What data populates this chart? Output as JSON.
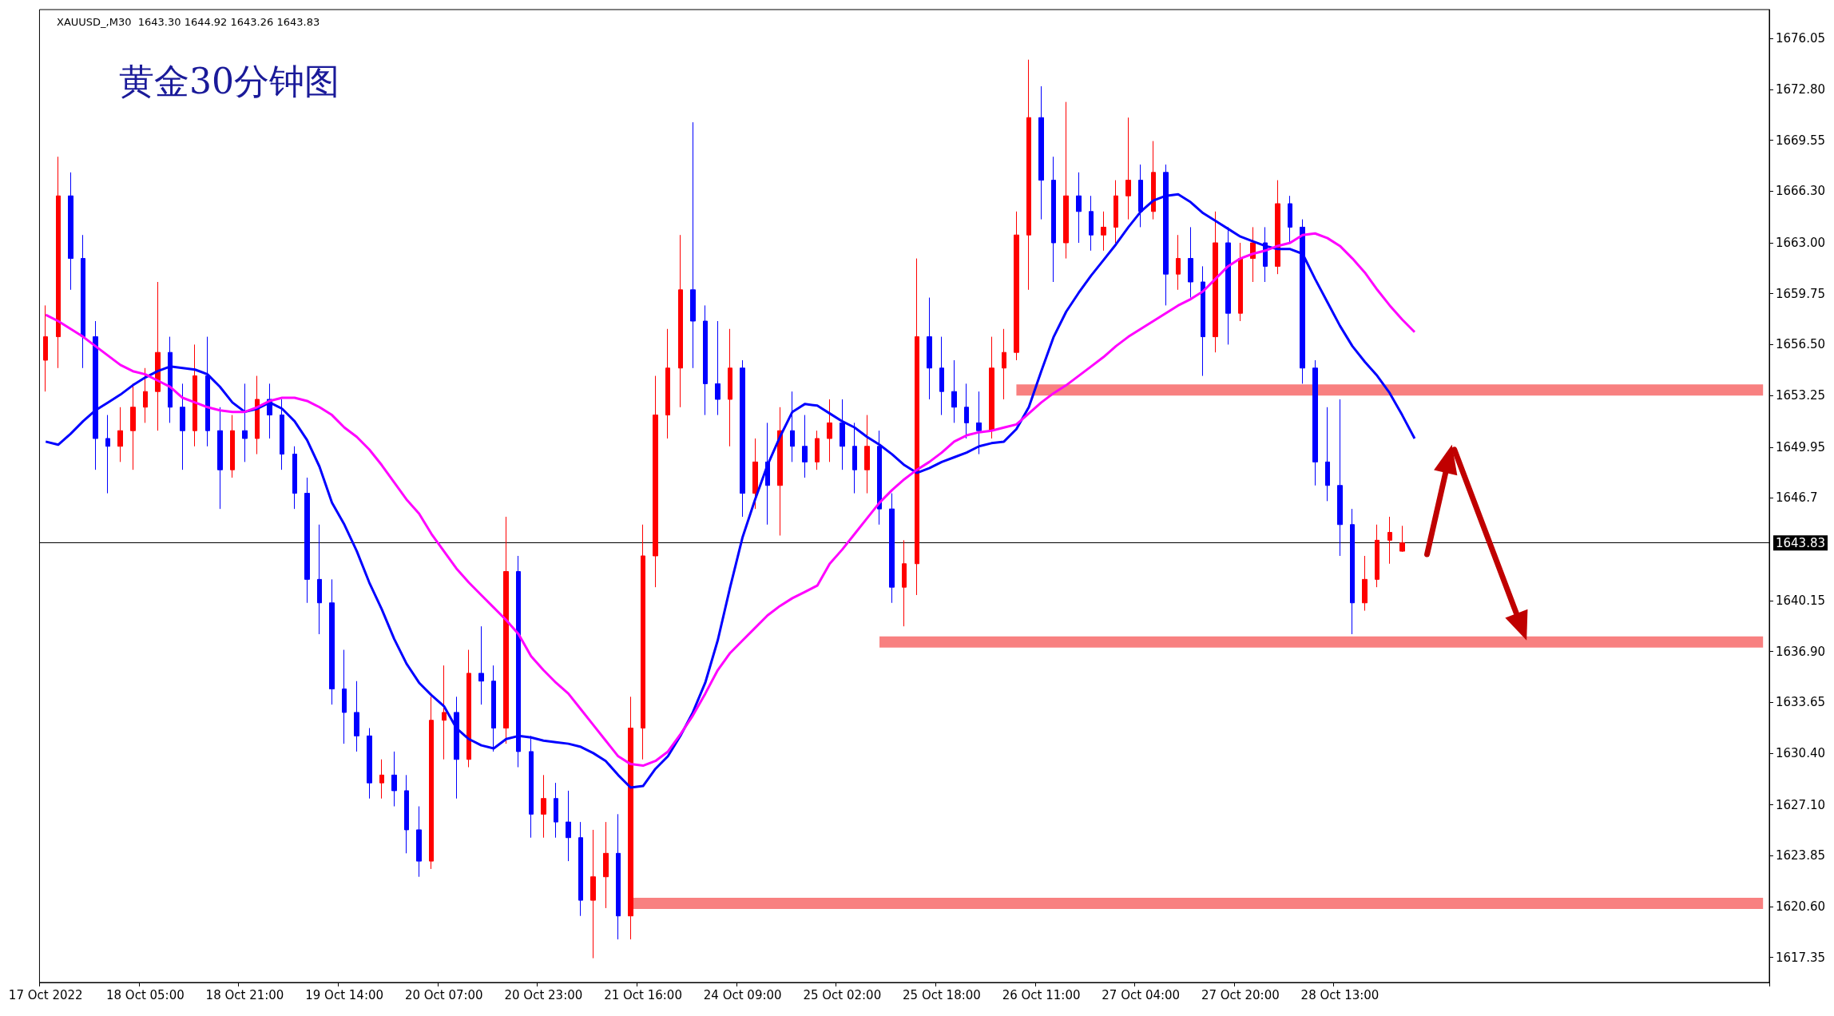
{
  "chart_data": {
    "type": "candlestick",
    "title": "黄金30分钟图",
    "subtitle": "XAUUSD_,M30  1643.30 1644.92 1643.26 1643.83",
    "categories": [
      "17 Oct 2022",
      null,
      null,
      null,
      null,
      null,
      null,
      null,
      "18 Oct 05:00",
      null,
      null,
      null,
      null,
      null,
      null,
      null,
      "18 Oct 21:00",
      null,
      null,
      null,
      null,
      null,
      null,
      null,
      "19 Oct 14:00",
      null,
      null,
      null,
      null,
      null,
      null,
      null,
      "20 Oct 07:00",
      null,
      null,
      null,
      null,
      null,
      null,
      null,
      "20 Oct 23:00",
      null,
      null,
      null,
      null,
      null,
      null,
      null,
      "21 Oct 16:00",
      null,
      null,
      null,
      null,
      null,
      null,
      null,
      "24 Oct 09:00",
      null,
      null,
      null,
      null,
      null,
      null,
      null,
      "25 Oct 02:00",
      null,
      null,
      null,
      null,
      null,
      null,
      null,
      "25 Oct 18:00",
      null,
      null,
      null,
      null,
      null,
      null,
      null,
      "26 Oct 11:00",
      null,
      null,
      null,
      null,
      null,
      null,
      null,
      "27 Oct 04:00",
      null,
      null,
      null,
      null,
      null,
      null,
      null,
      "27 Oct 20:00",
      null,
      null,
      null,
      null,
      null,
      null,
      null,
      "28 Oct 13:00",
      null,
      null,
      null,
      null,
      null,
      null,
      null,
      null,
      null,
      null,
      null,
      null,
      null,
      null,
      null,
      null,
      null,
      null,
      null,
      null,
      null,
      null,
      null,
      null,
      null,
      null,
      null,
      null,
      null,
      null,
      null,
      null,
      null,
      null
    ],
    "ohlc": [
      [
        1655.5,
        1659,
        1653.5,
        1657
      ],
      [
        1657,
        1668.5,
        1655,
        1666
      ],
      [
        1666,
        1667.5,
        1660,
        1662
      ],
      [
        1662,
        1663.5,
        1655,
        1657
      ],
      [
        1657,
        1658,
        1648.5,
        1650.5
      ],
      [
        1650.5,
        1652,
        1647,
        1650
      ],
      [
        1650,
        1652.5,
        1649,
        1651
      ],
      [
        1651,
        1654,
        1648.5,
        1652.5
      ],
      [
        1652.5,
        1655,
        1651.5,
        1653.5
      ],
      [
        1653.5,
        1660.5,
        1651,
        1656
      ],
      [
        1656,
        1657,
        1651.5,
        1652.5
      ],
      [
        1652.5,
        1654,
        1648.5,
        1651
      ],
      [
        1651,
        1656.5,
        1650,
        1654.5
      ],
      [
        1654.5,
        1657,
        1650,
        1651
      ],
      [
        1651,
        1652.5,
        1646,
        1648.5
      ],
      [
        1648.5,
        1652,
        1648,
        1651
      ],
      [
        1651,
        1654,
        1649,
        1650.5
      ],
      [
        1650.5,
        1654.5,
        1649.5,
        1653
      ],
      [
        1653,
        1654,
        1650.5,
        1652
      ],
      [
        1652,
        1653,
        1648.5,
        1649.5
      ],
      [
        1649.5,
        1650,
        1646,
        1647
      ],
      [
        1647,
        1648,
        1640,
        1641.5
      ],
      [
        1641.5,
        1645,
        1638,
        1640
      ],
      [
        1640,
        1641.5,
        1633.5,
        1634.5
      ],
      [
        1634.5,
        1637,
        1631,
        1633
      ],
      [
        1633,
        1635,
        1630.5,
        1631.5
      ],
      [
        1631.5,
        1632,
        1627.5,
        1628.5
      ],
      [
        1628.5,
        1630,
        1627.5,
        1629
      ],
      [
        1629,
        1630.5,
        1627,
        1628
      ],
      [
        1628,
        1629,
        1624,
        1625.5
      ],
      [
        1625.5,
        1627,
        1622.5,
        1623.5
      ],
      [
        1623.5,
        1634,
        1623,
        1632.5
      ],
      [
        1632.5,
        1636,
        1630,
        1633
      ],
      [
        1633,
        1634,
        1627.5,
        1630
      ],
      [
        1630,
        1637,
        1629.5,
        1635.5
      ],
      [
        1635.5,
        1638.5,
        1633.5,
        1635
      ],
      [
        1635,
        1636,
        1630.5,
        1632
      ],
      [
        1632,
        1645.5,
        1631,
        1642
      ],
      [
        1642,
        1643,
        1629.5,
        1630.5
      ],
      [
        1630.5,
        1631.5,
        1625,
        1626.5
      ],
      [
        1626.5,
        1629,
        1625,
        1627.5
      ],
      [
        1627.5,
        1628.5,
        1625,
        1626
      ],
      [
        1626,
        1628,
        1623.5,
        1625
      ],
      [
        1625,
        1626,
        1620,
        1621
      ],
      [
        1621,
        1625.5,
        1617.3,
        1622.5
      ],
      [
        1622.5,
        1626,
        1620.5,
        1624
      ],
      [
        1624,
        1626.5,
        1618.5,
        1620
      ],
      [
        1620,
        1634,
        1618.5,
        1632
      ],
      [
        1632,
        1645,
        1630,
        1643
      ],
      [
        1643,
        1654.5,
        1641,
        1652
      ],
      [
        1652,
        1657.5,
        1650.5,
        1655
      ],
      [
        1655,
        1663.5,
        1652.5,
        1660
      ],
      [
        1660,
        1670.7,
        1655,
        1658
      ],
      [
        1658,
        1659,
        1652,
        1654
      ],
      [
        1654,
        1658,
        1652,
        1653
      ],
      [
        1653,
        1657.5,
        1650,
        1655
      ],
      [
        1655,
        1655.5,
        1645.5,
        1647
      ],
      [
        1647,
        1650.5,
        1646,
        1649
      ],
      [
        1649,
        1651.5,
        1645,
        1647.5
      ],
      [
        1647.5,
        1652.5,
        1644.3,
        1651
      ],
      [
        1651,
        1653.5,
        1649,
        1650
      ],
      [
        1650,
        1652,
        1648,
        1649
      ],
      [
        1649,
        1651,
        1648.5,
        1650.5
      ],
      [
        1650.5,
        1653,
        1649,
        1651.5
      ],
      [
        1651.5,
        1653,
        1648.5,
        1650
      ],
      [
        1650,
        1651.5,
        1647,
        1648.5
      ],
      [
        1648.5,
        1652,
        1647,
        1650
      ],
      [
        1650,
        1651,
        1645,
        1646
      ],
      [
        1646,
        1647,
        1640,
        1641
      ],
      [
        1641,
        1644,
        1638.5,
        1642.5
      ],
      [
        1642.5,
        1662,
        1640.5,
        1657
      ],
      [
        1657,
        1659.5,
        1653,
        1655
      ],
      [
        1655,
        1657,
        1652,
        1653.5
      ],
      [
        1653.5,
        1655.5,
        1651.5,
        1652.5
      ],
      [
        1652.5,
        1654,
        1650.5,
        1651.5
      ],
      [
        1651.5,
        1653.5,
        1649.5,
        1651
      ],
      [
        1651,
        1657,
        1650.5,
        1655
      ],
      [
        1655,
        1657.5,
        1653,
        1656
      ],
      [
        1656,
        1665,
        1655.5,
        1663.5
      ],
      [
        1663.5,
        1674.7,
        1660,
        1671
      ],
      [
        1671,
        1673,
        1664.5,
        1667
      ],
      [
        1667,
        1668.5,
        1660.5,
        1663
      ],
      [
        1663,
        1672,
        1662,
        1666
      ],
      [
        1666,
        1667.5,
        1663,
        1665
      ],
      [
        1665,
        1666,
        1662.5,
        1663.5
      ],
      [
        1663.5,
        1665,
        1662.5,
        1664
      ],
      [
        1664,
        1667,
        1663,
        1666
      ],
      [
        1666,
        1671,
        1664.5,
        1667
      ],
      [
        1667,
        1668,
        1664,
        1665
      ],
      [
        1665,
        1669.5,
        1664.5,
        1667.5
      ],
      [
        1667.5,
        1668,
        1659,
        1661
      ],
      [
        1661,
        1663.5,
        1660,
        1662
      ],
      [
        1662,
        1664,
        1659.5,
        1660.5
      ],
      [
        1660.5,
        1661.5,
        1654.5,
        1657
      ],
      [
        1657,
        1665,
        1656,
        1663
      ],
      [
        1663,
        1664,
        1656.5,
        1658.5
      ],
      [
        1658.5,
        1663,
        1658,
        1662
      ],
      [
        1662,
        1664,
        1660.5,
        1663
      ],
      [
        1663,
        1664,
        1660.5,
        1661.5
      ],
      [
        1661.5,
        1667,
        1661,
        1665.5
      ],
      [
        1665.5,
        1666,
        1663,
        1664
      ],
      [
        1664,
        1664.5,
        1654,
        1655
      ],
      [
        1655,
        1655.5,
        1647.5,
        1649
      ],
      [
        1649,
        1652.5,
        1646.5,
        1647.5
      ],
      [
        1647.5,
        1653,
        1643,
        1645
      ],
      [
        1645,
        1646,
        1638,
        1640
      ],
      [
        1640,
        1643,
        1639.5,
        1641.5
      ],
      [
        1641.5,
        1645,
        1641,
        1644
      ],
      [
        1644,
        1645.5,
        1642.5,
        1644.5
      ],
      [
        1643.3,
        1644.92,
        1643.26,
        1643.83
      ],
      null,
      null,
      null,
      null,
      null,
      null,
      null,
      null,
      null,
      null,
      null,
      null,
      null,
      null,
      null,
      null,
      null,
      null,
      null,
      null,
      null,
      null,
      null,
      null,
      null,
      null,
      null,
      null,
      null
    ],
    "colors": [
      "#ff0000",
      "#ff0000",
      "#0000ff",
      "#0000ff",
      "#0000ff",
      "#0000ff",
      "#ff0000",
      "#ff0000",
      "#ff0000",
      "#ff0000",
      "#0000ff",
      "#0000ff",
      "#ff0000",
      "#0000ff",
      "#0000ff",
      "#ff0000",
      "#0000ff",
      "#ff0000",
      "#0000ff",
      "#0000ff",
      "#0000ff",
      "#0000ff",
      "#0000ff",
      "#0000ff",
      "#0000ff",
      "#0000ff",
      "#0000ff",
      "#ff0000",
      "#0000ff",
      "#0000ff",
      "#0000ff",
      "#ff0000",
      "#ff0000",
      "#0000ff",
      "#ff0000",
      "#0000ff",
      "#0000ff",
      "#ff0000",
      "#0000ff",
      "#0000ff",
      "#ff0000",
      "#0000ff",
      "#0000ff",
      "#0000ff",
      "#ff0000",
      "#ff0000",
      "#0000ff",
      "#ff0000",
      "#ff0000",
      "#ff0000",
      "#ff0000",
      "#ff0000",
      "#0000ff",
      "#0000ff",
      "#0000ff",
      "#ff0000",
      "#0000ff",
      "#ff0000",
      "#0000ff",
      "#ff0000",
      "#0000ff",
      "#0000ff",
      "#ff0000",
      "#ff0000",
      "#0000ff",
      "#0000ff",
      "#ff0000",
      "#0000ff",
      "#0000ff",
      "#ff0000",
      "#ff0000",
      "#0000ff",
      "#0000ff",
      "#0000ff",
      "#0000ff",
      "#0000ff",
      "#ff0000",
      "#ff0000",
      "#ff0000",
      "#ff0000",
      "#0000ff",
      "#0000ff",
      "#ff0000",
      "#0000ff",
      "#0000ff",
      "#ff0000",
      "#ff0000",
      "#ff0000",
      "#0000ff",
      "#ff0000",
      "#0000ff",
      "#ff0000",
      "#0000ff",
      "#0000ff",
      "#ff0000",
      "#0000ff",
      "#ff0000",
      "#ff0000",
      "#0000ff",
      "#ff0000",
      "#0000ff",
      "#0000ff",
      "#0000ff",
      "#0000ff",
      "#0000ff",
      "#0000ff",
      "#ff0000",
      "#ff0000",
      "#ff0000",
      "#ff0000",
      null,
      null,
      null,
      null,
      null,
      null,
      null,
      null,
      null,
      null,
      null,
      null,
      null,
      null,
      null,
      null,
      null,
      null,
      null,
      null,
      null,
      null,
      null,
      null,
      null,
      null,
      null,
      null,
      null
    ],
    "series": [
      {
        "type": "line",
        "color": "#0000ff",
        "values": [
          1650.3,
          1650.1,
          1650.8,
          1651.6,
          1652.3,
          1652.8,
          1653.3,
          1653.9,
          1654.4,
          1654.8,
          1655.1,
          1655.0,
          1654.9,
          1654.6,
          1653.8,
          1652.8,
          1652.2,
          1652.4,
          1652.8,
          1652.4,
          1651.6,
          1650.4,
          1648.7,
          1646.4,
          1645.0,
          1643.3,
          1641.3,
          1639.6,
          1637.7,
          1636.1,
          1634.9,
          1634.1,
          1633.4,
          1632.0,
          1631.3,
          1630.9,
          1630.7,
          1631.3,
          1631.5,
          1631.4,
          1631.2,
          1631.1,
          1631.0,
          1630.8,
          1630.4,
          1629.9,
          1629.0,
          1628.2,
          1628.3,
          1629.4,
          1630.2,
          1631.5,
          1633.0,
          1634.9,
          1637.6,
          1641.0,
          1644.2,
          1646.6,
          1648.8,
          1650.6,
          1652.2,
          1652.7,
          1652.6,
          1652.1,
          1651.6,
          1651.2,
          1650.6,
          1650.1,
          1649.5,
          1648.8,
          1648.3,
          1648.6,
          1649.0,
          1649.3,
          1649.6,
          1650.0,
          1650.2,
          1650.3,
          1651.1,
          1652.5,
          1654.8,
          1657.0,
          1658.6,
          1659.8,
          1660.9,
          1661.9,
          1662.9,
          1664.0,
          1665.0,
          1665.7,
          1666.0,
          1666.1,
          1665.6,
          1664.9,
          1664.4,
          1663.9,
          1663.4,
          1663.1,
          1662.8,
          1662.6,
          1662.6,
          1662.3,
          1660.7,
          1659.2,
          1657.7,
          1656.4,
          1655.4,
          1654.5,
          1653.4,
          1652.0,
          1650.5,
          null,
          null,
          null,
          null,
          null,
          null,
          null,
          null,
          null,
          null,
          null,
          null,
          null,
          null,
          null,
          null,
          null,
          null,
          null,
          null,
          null,
          null,
          null,
          null,
          null,
          null,
          null,
          null
        ]
      },
      {
        "type": "line",
        "color": "#ff00ff",
        "values": [
          1658.4,
          1658.0,
          1657.5,
          1657.0,
          1656.4,
          1655.8,
          1655.2,
          1654.8,
          1654.6,
          1654.2,
          1653.8,
          1653.1,
          1652.8,
          1652.5,
          1652.3,
          1652.2,
          1652.2,
          1652.5,
          1652.9,
          1653.1,
          1653.1,
          1652.9,
          1652.5,
          1652.0,
          1651.2,
          1650.6,
          1649.8,
          1648.8,
          1647.7,
          1646.6,
          1645.7,
          1644.4,
          1643.3,
          1642.2,
          1641.3,
          1640.5,
          1639.7,
          1638.9,
          1638.0,
          1636.6,
          1635.7,
          1634.9,
          1634.2,
          1633.2,
          1632.2,
          1631.2,
          1630.2,
          1629.7,
          1629.6,
          1629.9,
          1630.5,
          1631.6,
          1632.8,
          1634.2,
          1635.7,
          1636.8,
          1637.6,
          1638.4,
          1639.2,
          1639.8,
          1640.3,
          1640.7,
          1641.1,
          1642.5,
          1643.4,
          1644.4,
          1645.4,
          1646.4,
          1647.2,
          1647.9,
          1648.5,
          1649.0,
          1649.6,
          1650.3,
          1650.7,
          1650.9,
          1651.0,
          1651.2,
          1651.4,
          1652.1,
          1652.8,
          1653.4,
          1653.9,
          1654.5,
          1655.1,
          1655.7,
          1656.4,
          1657.0,
          1657.5,
          1658.0,
          1658.5,
          1659.0,
          1659.4,
          1659.9,
          1660.7,
          1661.5,
          1662.0,
          1662.3,
          1662.5,
          1662.8,
          1663.0,
          1663.5,
          1663.6,
          1663.3,
          1662.8,
          1662.0,
          1661.1,
          1660.0,
          1659.0,
          1658.1,
          1657.3,
          null,
          null,
          null,
          null,
          null,
          null,
          null,
          null,
          null,
          null,
          null,
          null,
          null,
          null,
          null,
          null,
          null,
          null,
          null,
          null,
          null,
          null,
          null,
          null,
          null,
          null,
          null,
          null
        ]
      },
      {
        "type": "line",
        "color": "#f88080",
        "values": [
          null,
          null,
          null,
          null,
          null,
          null,
          null,
          null,
          null,
          null,
          null,
          null,
          null,
          null,
          null,
          null,
          null,
          null,
          null,
          null,
          null,
          null,
          null,
          null,
          null,
          null,
          null,
          null,
          null,
          null,
          null,
          null,
          null,
          null,
          null,
          null,
          null,
          null,
          null,
          null,
          null,
          null,
          null,
          null,
          null,
          null,
          null,
          null,
          null,
          null,
          null,
          null,
          null,
          null,
          null,
          null,
          null,
          null,
          null,
          null,
          null,
          null,
          null,
          null,
          null,
          null,
          null,
          null,
          null,
          null,
          null,
          null,
          null,
          null,
          null,
          null,
          null,
          null,
          1653.6,
          1653.6,
          1653.6,
          1653.6,
          1653.6,
          1653.6,
          1653.6,
          1653.6,
          1653.6,
          1653.6,
          1653.6,
          1653.6,
          1653.6,
          1653.6,
          1653.6,
          1653.6,
          1653.6,
          1653.6,
          1653.6,
          1653.6,
          1653.6,
          1653.6,
          1653.6,
          1653.6,
          1653.6,
          1653.6,
          1653.6,
          1653.6,
          1653.6,
          1653.6,
          1653.6,
          1653.6,
          1653.6,
          1653.6,
          1653.6,
          1653.6,
          1653.6,
          1653.6,
          1653.6,
          1653.6,
          1653.6,
          1653.6,
          1653.6,
          1653.6,
          1653.6,
          1653.6,
          1653.6,
          1653.6,
          1653.6,
          1653.6,
          1653.6,
          1653.6,
          1653.6,
          1653.6,
          1653.6,
          1653.6,
          1653.6,
          1653.6,
          1653.6,
          1653.6,
          1653.6
        ]
      },
      {
        "type": "line",
        "color": "#f88080",
        "values": [
          null,
          null,
          null,
          null,
          null,
          null,
          null,
          null,
          null,
          null,
          null,
          null,
          null,
          null,
          null,
          null,
          null,
          null,
          null,
          null,
          null,
          null,
          null,
          null,
          null,
          null,
          null,
          null,
          null,
          null,
          null,
          null,
          null,
          null,
          null,
          null,
          null,
          null,
          null,
          null,
          null,
          null,
          null,
          null,
          null,
          null,
          null,
          null,
          null,
          null,
          null,
          null,
          null,
          null,
          null,
          null,
          null,
          null,
          null,
          null,
          null,
          null,
          null,
          null,
          null,
          null,
          null,
          1637.5,
          1637.5,
          1637.5,
          1637.5,
          1637.5,
          1637.5,
          1637.5,
          1637.5,
          1637.5,
          1637.5,
          1637.5,
          1637.5,
          1637.5,
          1637.5,
          1637.5,
          1637.5,
          1637.5,
          1637.5,
          1637.5,
          1637.5,
          1637.5,
          1637.5,
          1637.5,
          1637.5,
          1637.5,
          1637.5,
          1637.5,
          1637.5,
          1637.5,
          1637.5,
          1637.5,
          1637.5,
          1637.5,
          1637.5,
          1637.5,
          1637.5,
          1637.5,
          1637.5,
          1637.5,
          1637.5,
          1637.5,
          1637.5,
          1637.5,
          1637.5,
          1637.5,
          1637.5,
          1637.5,
          1637.5,
          1637.5,
          1637.5,
          1637.5,
          1637.5,
          1637.5,
          1637.5,
          1637.5,
          1637.5,
          1637.5,
          1637.5,
          1637.5,
          1637.5,
          1637.5,
          1637.5,
          1637.5,
          1637.5,
          1637.5,
          1637.5,
          1637.5,
          1637.5,
          1637.5,
          1637.5,
          1637.5,
          1637.5
        ]
      },
      {
        "type": "line",
        "color": "#f88080",
        "values": [
          null,
          null,
          null,
          null,
          null,
          null,
          null,
          null,
          null,
          null,
          null,
          null,
          null,
          null,
          null,
          null,
          null,
          null,
          null,
          null,
          null,
          null,
          null,
          null,
          null,
          null,
          null,
          null,
          null,
          null,
          null,
          null,
          null,
          null,
          null,
          null,
          null,
          null,
          null,
          null,
          null,
          null,
          null,
          null,
          null,
          null,
          null,
          1620.8,
          1620.8,
          1620.8,
          1620.8,
          1620.8,
          1620.8,
          1620.8,
          1620.8,
          1620.8,
          1620.8,
          1620.8,
          1620.8,
          1620.8,
          1620.8,
          1620.8,
          1620.8,
          1620.8,
          1620.8,
          1620.8,
          1620.8,
          1620.8,
          1620.8,
          1620.8,
          1620.8,
          1620.8,
          1620.8,
          1620.8,
          1620.8,
          1620.8,
          1620.8,
          1620.8,
          1620.8,
          1620.8,
          1620.8,
          1620.8,
          1620.8,
          1620.8,
          1620.8,
          1620.8,
          1620.8,
          1620.8,
          1620.8,
          1620.8,
          1620.8,
          1620.8,
          1620.8,
          1620.8,
          1620.8,
          1620.8,
          1620.8,
          1620.8,
          1620.8,
          1620.8,
          1620.8,
          1620.8,
          1620.8,
          1620.8,
          1620.8,
          1620.8,
          1620.8,
          1620.8,
          1620.8,
          1620.8,
          1620.8,
          1620.8,
          1620.8,
          1620.8,
          1620.8,
          1620.8,
          1620.8,
          1620.8,
          1620.8,
          1620.8,
          1620.8,
          1620.8,
          1620.8,
          1620.8,
          1620.8,
          1620.8,
          1620.8,
          1620.8,
          1620.8,
          1620.8,
          1620.8,
          1620.8,
          1620.8,
          1620.8,
          1620.8,
          1620.8,
          1620.8,
          1620.8,
          1620.8
        ]
      }
    ],
    "ylim": [
      1615.75,
      1677.9
    ],
    "yticks": [
      1617.35,
      {
        "value": 1620.6,
        "label": "1620.60"
      },
      1623.85,
      {
        "value": 1627.1,
        "label": "1627.10"
      },
      {
        "value": 1630.4,
        "label": "1630.40"
      },
      1633.65,
      {
        "value": 1636.9,
        "label": "1636.90"
      },
      1640.15,
      1646.7,
      1649.95,
      1653.25,
      {
        "value": 1656.5,
        "label": "1656.50"
      },
      1659.75,
      {
        "value": 1663,
        "label": "1663.00"
      },
      {
        "value": 1666.3,
        "label": "1666.30"
      },
      1669.55,
      {
        "value": 1672.8,
        "label": "1672.80"
      },
      1676.05
    ],
    "ref_lines": [
      {
        "axis": "y",
        "value": 1643.83,
        "label": "1643.83",
        "color": "#000000"
      }
    ]
  }
}
